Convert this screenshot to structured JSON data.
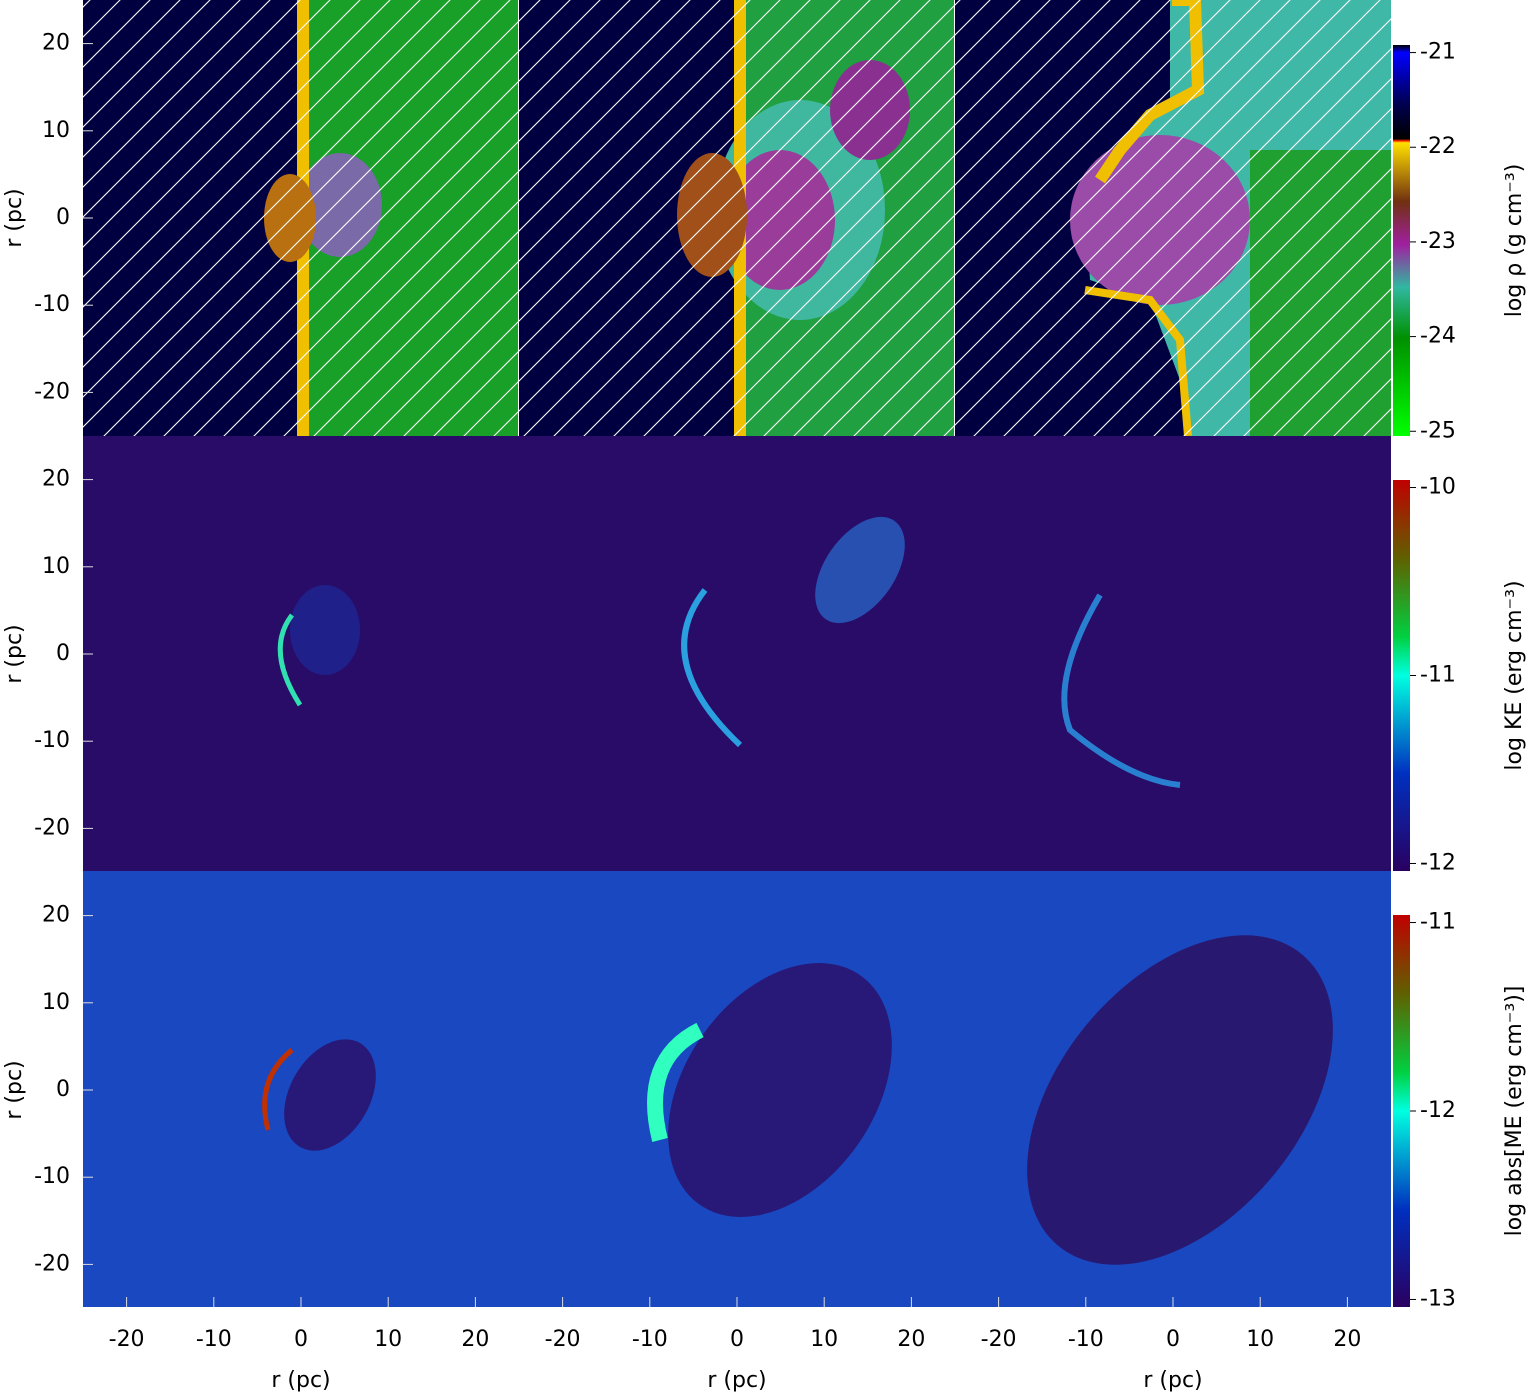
{
  "chart_data": [
    {
      "type": "heatmap",
      "ylabel": "r (pc)",
      "ylim": [
        -25,
        25
      ],
      "yticks": [
        -20,
        -10,
        0,
        10,
        20
      ],
      "colorbar": {
        "label": "log ρ (g cm⁻³)",
        "lim": [
          -25.05,
          -20.92
        ],
        "ticks": [
          -25,
          -24,
          -23,
          -22,
          -21
        ]
      }
    },
    {
      "type": "heatmap",
      "ylabel": "r (pc)",
      "ylim": [
        -25,
        25
      ],
      "yticks": [
        -20,
        -10,
        0,
        10,
        20
      ],
      "colorbar": {
        "label": "log KE (erg cm⁻³)",
        "lim": [
          -12.04,
          -9.96
        ],
        "ticks": [
          -12,
          -11,
          -10
        ]
      }
    },
    {
      "type": "heatmap",
      "ylabel": "r (pc)",
      "ylim": [
        -25,
        25
      ],
      "yticks": [
        -20,
        -10,
        0,
        10,
        20
      ],
      "xlabel": "r (pc)",
      "xlim": [
        -25,
        25
      ],
      "xticks": [
        -20,
        -10,
        0,
        10,
        20
      ],
      "colorbar": {
        "label": "log abs[ME (erg cm⁻³)]",
        "lim": [
          -13.04,
          -10.96
        ],
        "ticks": [
          -13,
          -12,
          -11
        ]
      }
    }
  ]
}
